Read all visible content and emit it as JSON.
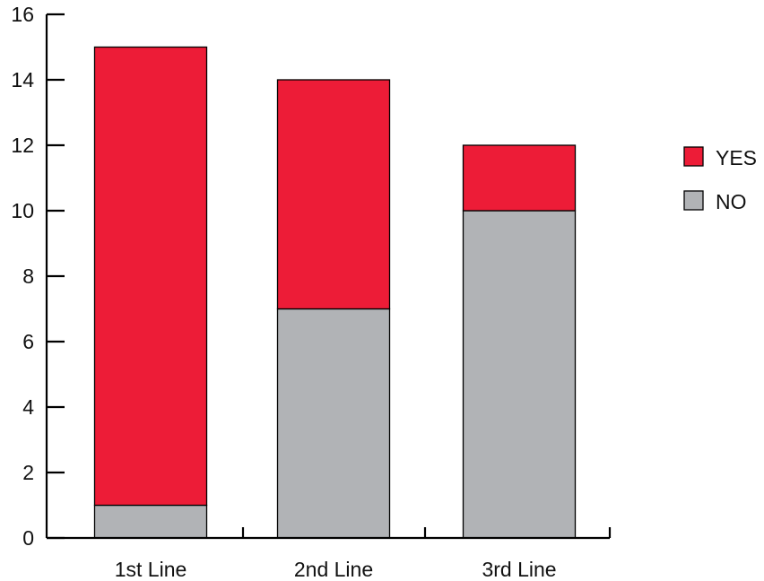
{
  "chart_data": {
    "type": "bar",
    "stacked": true,
    "categories": [
      "1st Line",
      "2nd Line",
      "3rd Line"
    ],
    "series": [
      {
        "name": "NO",
        "values": [
          1,
          7,
          10
        ],
        "color": "#b1b3b6"
      },
      {
        "name": "YES",
        "values": [
          14,
          7,
          2
        ],
        "color": "#ed1c37"
      }
    ],
    "ylim": [
      0,
      16
    ],
    "yticks": [
      "0",
      "2",
      "4",
      "6",
      "8",
      "10",
      "12",
      "14",
      "16"
    ],
    "grid": false,
    "legend": {
      "placement": "right",
      "entries": [
        "YES",
        "NO"
      ]
    }
  }
}
